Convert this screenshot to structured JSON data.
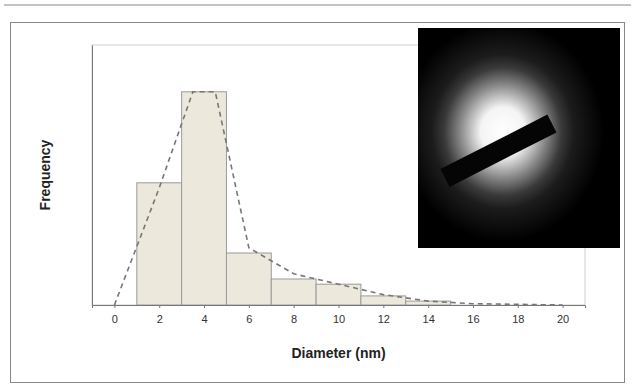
{
  "chart_data": {
    "type": "histogram",
    "x_label": "Diameter (nm)",
    "y_label": "Frequency",
    "bins": [
      1,
      3,
      5,
      7,
      9,
      11,
      13,
      15
    ],
    "values": [
      47,
      82,
      20,
      10,
      8,
      3.5,
      1.5
    ],
    "color": "#ede8dc",
    "series": [
      {
        "type": "line",
        "line_style": "dashed",
        "color": "#777777",
        "x": [
          0,
          2,
          3.5,
          4.5,
          6,
          8,
          10,
          12,
          14,
          16,
          20
        ],
        "values": [
          0,
          45,
          82,
          82,
          22,
          12,
          8,
          4,
          1.5,
          0.5,
          0
        ]
      }
    ],
    "xlim": [
      -1,
      21
    ],
    "xticks": [
      0,
      2,
      4,
      6,
      8,
      10,
      12,
      14,
      16,
      18,
      20
    ],
    "ylim": [
      0,
      100
    ],
    "yticks": [],
    "tick_labels": "x",
    "grid": false
  }
}
